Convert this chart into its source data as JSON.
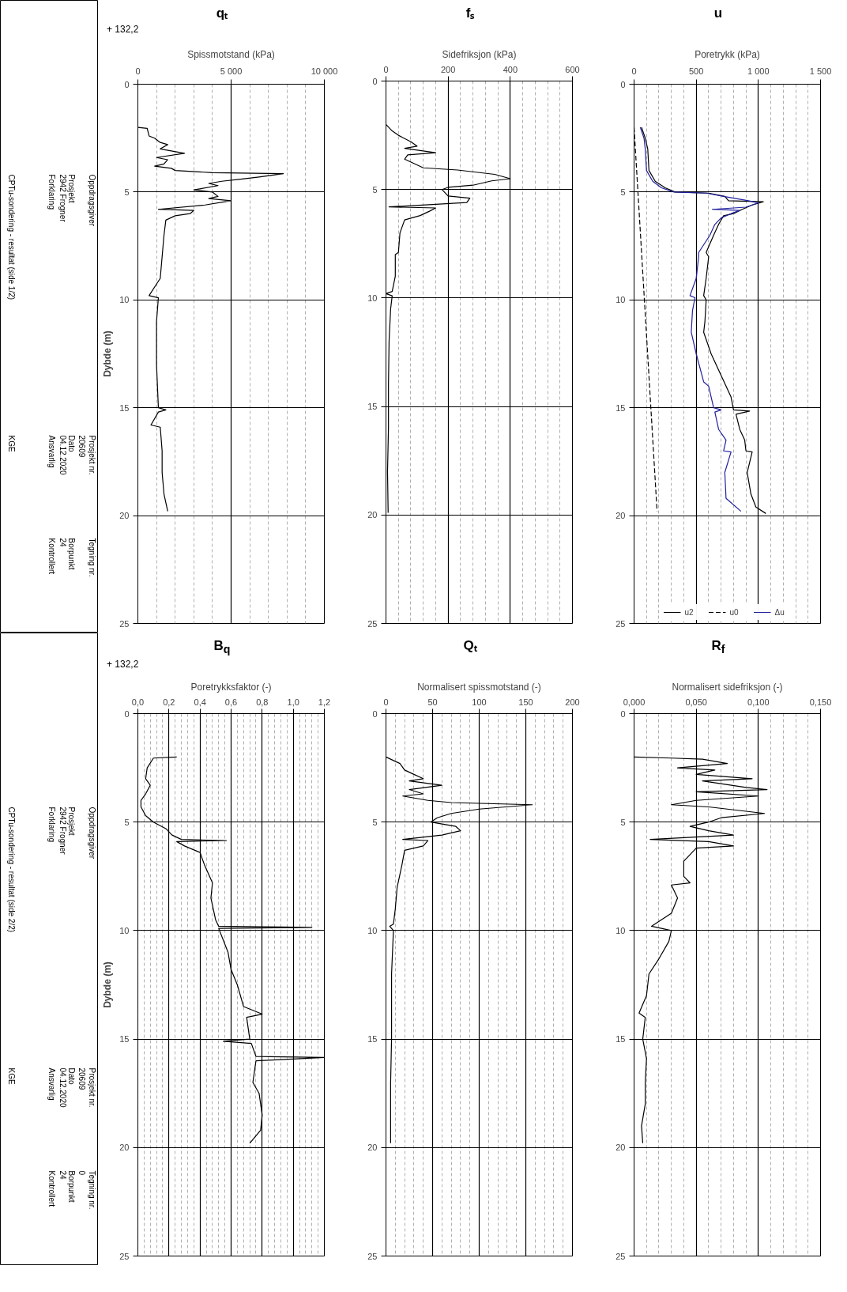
{
  "chart_data": [
    {
      "type": "other",
      "annotations": [
        "Oppdragsgiver",
        "Prosjekt",
        "2942 Frogner",
        "Forklaring",
        "CPTu-sondering - resultat (side 1/2)",
        "Prosjekt nr.",
        "20609",
        "Dato",
        "04.12.2020",
        "Ansvarlig",
        "KGE",
        "Tegning nr.",
        "Borpunkt",
        "24",
        "Kontrollert"
      ]
    },
    {
      "type": "line",
      "title": "qₜ",
      "xlabel": "Spissmotstand (kPa)",
      "ylabel": "Dybde (m)",
      "annotations": [
        "+ 132,2"
      ],
      "xlim": [
        0,
        10000
      ],
      "ylim": [
        25,
        0
      ],
      "xticks": [
        0,
        {
          "value": 1000,
          "label": null
        },
        {
          "value": 2000,
          "label": null
        },
        {
          "value": 3000,
          "label": null
        },
        {
          "value": 4000,
          "label": null
        },
        {
          "value": 5000,
          "label": "5 000"
        },
        {
          "value": 6000,
          "label": null
        },
        {
          "value": 7000,
          "label": null
        },
        {
          "value": 8000,
          "label": null
        },
        {
          "value": 9000,
          "label": null
        },
        {
          "value": 10000,
          "label": "10 000"
        }
      ],
      "yticks": [
        0,
        5,
        10,
        15,
        20,
        25
      ],
      "grid": true,
      "legend": false,
      "marker": "none",
      "series": [
        {
          "color": "#000000",
          "line_style": "solid",
          "x": [
            0,
            500,
            600,
            900,
            1200,
            1600,
            1200,
            2500,
            1000,
            1600,
            1400,
            900,
            1800,
            2000,
            4000,
            7800,
            6500,
            5500,
            4500,
            3800,
            4300,
            3000,
            4000,
            4300,
            3800,
            5000,
            3600,
            1100,
            3000,
            2800,
            2000,
            1500,
            1400,
            1300,
            1200,
            600,
            1100,
            1000,
            1000,
            1100,
            1500,
            1100,
            700,
            1200,
            1300,
            1300,
            1400,
            1600
          ],
          "values": [
            2.0,
            2.05,
            2.4,
            2.5,
            2.7,
            2.8,
            3.0,
            3.2,
            3.4,
            3.5,
            3.7,
            3.8,
            3.9,
            4.0,
            4.1,
            4.15,
            4.3,
            4.4,
            4.5,
            4.6,
            4.7,
            4.9,
            5.0,
            5.2,
            5.3,
            5.4,
            5.6,
            5.8,
            5.85,
            6.0,
            6.1,
            6.3,
            7.0,
            8.0,
            9.0,
            9.8,
            9.9,
            11.0,
            13.0,
            15.0,
            15.1,
            15.2,
            15.8,
            15.9,
            17.0,
            18.0,
            19.0,
            19.8
          ]
        }
      ]
    },
    {
      "type": "line",
      "title": "fₛ",
      "xlabel": "Sidefriksjon (kPa)",
      "xlim": [
        0,
        600
      ],
      "ylim": [
        25,
        0
      ],
      "xticks": [
        0,
        {
          "value": 40,
          "label": null
        },
        {
          "value": 80,
          "label": null
        },
        {
          "value": 120,
          "label": null
        },
        {
          "value": 160,
          "label": null
        },
        200,
        {
          "value": 240,
          "label": null
        },
        {
          "value": 280,
          "label": null
        },
        {
          "value": 320,
          "label": null
        },
        {
          "value": 360,
          "label": null
        },
        400,
        {
          "value": 440,
          "label": null
        },
        {
          "value": 480,
          "label": null
        },
        {
          "value": 520,
          "label": null
        },
        {
          "value": 560,
          "label": null
        },
        600
      ],
      "yticks": [
        0,
        5,
        10,
        15,
        20,
        25
      ],
      "grid": true,
      "legend": false,
      "marker": "none",
      "series": [
        {
          "color": "#000000",
          "line_style": "solid",
          "x": [
            0,
            20,
            40,
            80,
            100,
            60,
            160,
            70,
            60,
            90,
            120,
            230,
            350,
            400,
            340,
            280,
            200,
            180,
            200,
            270,
            260,
            10,
            160,
            140,
            110,
            60,
            45,
            40,
            30,
            30,
            20,
            0,
            20,
            15,
            10,
            8,
            8,
            5,
            7
          ],
          "values": [
            2.0,
            2.3,
            2.5,
            2.8,
            3.0,
            3.1,
            3.3,
            3.4,
            3.6,
            3.8,
            4.0,
            4.1,
            4.3,
            4.5,
            4.6,
            4.8,
            4.9,
            5.0,
            5.3,
            5.4,
            5.6,
            5.8,
            5.85,
            6.0,
            6.2,
            6.4,
            7.0,
            7.9,
            8.0,
            9.0,
            9.7,
            9.8,
            9.9,
            10.5,
            12.0,
            14.0,
            16.0,
            18.0,
            19.9
          ]
        }
      ]
    },
    {
      "type": "line",
      "title": "u",
      "xlabel": "Poretrykk (kPa)",
      "xlim": [
        0,
        1500
      ],
      "ylim": [
        25,
        0
      ],
      "xticks": [
        0,
        {
          "value": 100,
          "label": null
        },
        {
          "value": 200,
          "label": null
        },
        {
          "value": 300,
          "label": null
        },
        {
          "value": 400,
          "label": null
        },
        500,
        {
          "value": 600,
          "label": null
        },
        {
          "value": 700,
          "label": null
        },
        {
          "value": 800,
          "label": null
        },
        {
          "value": 900,
          "label": null
        },
        {
          "value": 1000,
          "label": "1 000"
        },
        {
          "value": 1100,
          "label": null
        },
        {
          "value": 1200,
          "label": null
        },
        {
          "value": 1300,
          "label": null
        },
        {
          "value": 1400,
          "label": null
        },
        {
          "value": 1500,
          "label": "1 500"
        }
      ],
      "yticks": [
        0,
        5,
        10,
        15,
        20,
        25
      ],
      "grid": true,
      "legend": "bottom",
      "marker": "none",
      "series": [
        {
          "name": "u2",
          "color": "#000000",
          "line_style": "solid",
          "x": [
            60,
            90,
            110,
            120,
            170,
            250,
            330,
            600,
            730,
            760,
            1040,
            950,
            870,
            800,
            720,
            680,
            640,
            580,
            600,
            580,
            560,
            580,
            570,
            560,
            620,
            700,
            780,
            800,
            930,
            820,
            850,
            890,
            900,
            950,
            910,
            940,
            980,
            1060
          ],
          "values": [
            2.0,
            2.5,
            3.0,
            4.0,
            4.5,
            4.8,
            5.0,
            5.05,
            5.2,
            5.4,
            5.45,
            5.6,
            5.8,
            6.0,
            6.1,
            6.5,
            7.0,
            7.8,
            8.0,
            9.0,
            9.8,
            10.0,
            11.0,
            11.5,
            12.5,
            13.5,
            14.5,
            15.1,
            15.15,
            15.3,
            16.0,
            16.5,
            17.0,
            17.05,
            18.0,
            19.0,
            19.6,
            19.9
          ]
        },
        {
          "name": "u0",
          "color": "#000000",
          "line_style": "dashed",
          "x": [
            0,
            185
          ],
          "values": [
            2.0,
            19.8
          ]
        },
        {
          "name": "Δu",
          "color": "#1f1fa0",
          "line_style": "solid",
          "x": [
            50,
            80,
            90,
            100,
            150,
            220,
            320,
            580,
            720,
            920,
            1000,
            900,
            630,
            850,
            780,
            700,
            650,
            610,
            520,
            520,
            500,
            450,
            490,
            470,
            460,
            500,
            560,
            600,
            640,
            700,
            650,
            680,
            740,
            720,
            780,
            730,
            740,
            860
          ],
          "values": [
            2.0,
            2.5,
            3.0,
            4.0,
            4.5,
            4.8,
            5.0,
            5.05,
            5.2,
            5.4,
            5.5,
            5.7,
            5.8,
            5.85,
            6.0,
            6.2,
            6.5,
            7.0,
            7.8,
            8.0,
            9.0,
            9.8,
            9.9,
            10.5,
            11.5,
            12.5,
            13.8,
            14.0,
            15.0,
            15.1,
            15.2,
            16.0,
            16.5,
            17.0,
            17.05,
            18.0,
            19.2,
            19.8
          ]
        }
      ]
    },
    {
      "type": "other",
      "annotations": [
        "Oppdragsgiver",
        "Prosjekt",
        "2942 Frogner",
        "Forklaring",
        "CPTu-sondering - resultat (side 2/2)",
        "Prosjekt nr.",
        "20609",
        "Dato",
        "04.12.2020",
        "Ansvarlig",
        "KGE",
        "Tegning nr.",
        "0",
        "Borpunkt",
        "24",
        "Kontrollert"
      ]
    },
    {
      "type": "line",
      "title": "B$_{q}$",
      "xlabel": "Poretrykksfaktor (-)",
      "ylabel": "Dybde (m)",
      "annotations": [
        "+ 132,2"
      ],
      "xlim": [
        0,
        1.2
      ],
      "ylim": [
        25,
        0
      ],
      "xticks": [
        {
          "value": 0,
          "label": "0,0"
        },
        {
          "value": 0.04,
          "label": null
        },
        {
          "value": 0.08,
          "label": null
        },
        {
          "value": 0.12,
          "label": null
        },
        {
          "value": 0.16,
          "label": null
        },
        {
          "value": 0.2,
          "label": "0,2"
        },
        {
          "value": 0.24,
          "label": null
        },
        {
          "value": 0.28,
          "label": null
        },
        {
          "value": 0.32,
          "label": null
        },
        {
          "value": 0.36,
          "label": null
        },
        {
          "value": 0.4,
          "label": "0,4"
        },
        {
          "value": 0.44,
          "label": null
        },
        {
          "value": 0.48,
          "label": null
        },
        {
          "value": 0.52,
          "label": null
        },
        {
          "value": 0.56,
          "label": null
        },
        {
          "value": 0.6,
          "label": "0,6"
        },
        {
          "value": 0.64,
          "label": null
        },
        {
          "value": 0.68,
          "label": null
        },
        {
          "value": 0.72,
          "label": null
        },
        {
          "value": 0.76,
          "label": null
        },
        {
          "value": 0.8,
          "label": "0,8"
        },
        {
          "value": 0.84,
          "label": null
        },
        {
          "value": 0.88,
          "label": null
        },
        {
          "value": 0.92,
          "label": null
        },
        {
          "value": 0.96,
          "label": null
        },
        {
          "value": 1.0,
          "label": "1,0"
        },
        {
          "value": 1.04,
          "label": null
        },
        {
          "value": 1.08,
          "label": null
        },
        {
          "value": 1.12,
          "label": null
        },
        {
          "value": 1.16,
          "label": null
        },
        {
          "value": 1.2,
          "label": "1,2"
        }
      ],
      "yticks": [
        0,
        5,
        10,
        15,
        20,
        25
      ],
      "grid": true,
      "legend": false,
      "marker": "none",
      "series": [
        {
          "color": "#000000",
          "line_style": "solid",
          "x": [
            0.25,
            0.1,
            0.06,
            0.05,
            0.08,
            0.05,
            0.02,
            0.02,
            0.05,
            0.1,
            0.18,
            0.22,
            0.28,
            0.57,
            0.25,
            0.3,
            0.4,
            0.43,
            0.48,
            0.47,
            0.5,
            0.52,
            1.12,
            0.52,
            0.58,
            0.6,
            0.64,
            0.68,
            0.8,
            0.7,
            0.72,
            0.55,
            0.73,
            0.76,
            1.2,
            0.76,
            0.74,
            0.78,
            0.8,
            0.79,
            0.72
          ],
          "values": [
            2.0,
            2.05,
            2.5,
            3.0,
            3.3,
            3.7,
            4.0,
            4.3,
            4.7,
            5.0,
            5.3,
            5.6,
            5.8,
            5.85,
            5.9,
            6.1,
            6.4,
            7.0,
            7.8,
            8.5,
            9.5,
            9.8,
            9.85,
            9.9,
            11.0,
            11.8,
            12.5,
            13.5,
            13.85,
            14.0,
            15.0,
            15.1,
            15.2,
            15.8,
            15.85,
            16.0,
            17.0,
            17.5,
            18.5,
            19.2,
            19.8
          ]
        }
      ]
    },
    {
      "type": "line",
      "title": "Qₜ",
      "xlabel": "Normalisert spissmotstand (-)",
      "xlim": [
        0,
        200
      ],
      "ylim": [
        25,
        0
      ],
      "xticks": [
        0,
        {
          "value": 10,
          "label": null
        },
        {
          "value": 20,
          "label": null
        },
        {
          "value": 30,
          "label": null
        },
        {
          "value": 40,
          "label": null
        },
        50,
        {
          "value": 60,
          "label": null
        },
        {
          "value": 70,
          "label": null
        },
        {
          "value": 80,
          "label": null
        },
        {
          "value": 90,
          "label": null
        },
        100,
        {
          "value": 110,
          "label": null
        },
        {
          "value": 120,
          "label": null
        },
        {
          "value": 130,
          "label": null
        },
        {
          "value": 140,
          "label": null
        },
        150,
        {
          "value": 160,
          "label": null
        },
        {
          "value": 170,
          "label": null
        },
        {
          "value": 180,
          "label": null
        },
        {
          "value": 190,
          "label": null
        },
        200
      ],
      "yticks": [
        0,
        5,
        10,
        15,
        20,
        25
      ],
      "grid": true,
      "legend": false,
      "marker": "none",
      "series": [
        {
          "color": "#000000",
          "line_style": "solid",
          "x": [
            0,
            15,
            20,
            30,
            40,
            25,
            60,
            25,
            40,
            18,
            45,
            70,
            157,
            100,
            70,
            55,
            48,
            75,
            80,
            60,
            18,
            45,
            40,
            20,
            17,
            12,
            10,
            8,
            4,
            8,
            6,
            6,
            5,
            5
          ],
          "values": [
            2.0,
            2.3,
            2.6,
            2.8,
            3.0,
            3.1,
            3.3,
            3.5,
            3.7,
            3.8,
            4.0,
            4.1,
            4.2,
            4.4,
            4.6,
            4.8,
            5.0,
            5.2,
            5.4,
            5.6,
            5.8,
            5.85,
            6.1,
            6.3,
            7.0,
            8.0,
            9.0,
            9.7,
            9.8,
            10.0,
            12.0,
            15.0,
            17.0,
            19.8
          ]
        }
      ]
    },
    {
      "type": "line",
      "title": "R$_{f}$",
      "xlabel": "Normalisert sidefriksjon (-)",
      "xlim": [
        0,
        0.15
      ],
      "ylim": [
        25,
        0
      ],
      "xticks": [
        {
          "value": 0,
          "label": "0,000"
        },
        {
          "value": 0.01,
          "label": null
        },
        {
          "value": 0.02,
          "label": null
        },
        {
          "value": 0.03,
          "label": null
        },
        {
          "value": 0.04,
          "label": null
        },
        {
          "value": 0.05,
          "label": "0,050"
        },
        {
          "value": 0.06,
          "label": null
        },
        {
          "value": 0.07,
          "label": null
        },
        {
          "value": 0.08,
          "label": null
        },
        {
          "value": 0.09,
          "label": null
        },
        {
          "value": 0.1,
          "label": "0,100"
        },
        {
          "value": 0.11,
          "label": null
        },
        {
          "value": 0.12,
          "label": null
        },
        {
          "value": 0.13,
          "label": null
        },
        {
          "value": 0.14,
          "label": null
        },
        {
          "value": 0.15,
          "label": "0,150"
        }
      ],
      "yticks": [
        0,
        5,
        10,
        15,
        20,
        25
      ],
      "grid": true,
      "legend": false,
      "marker": "none",
      "series": [
        {
          "color": "#000000",
          "line_style": "solid",
          "x": [
            0.0,
            0.03,
            0.055,
            0.075,
            0.035,
            0.065,
            0.05,
            0.095,
            0.055,
            0.09,
            0.107,
            0.05,
            0.1,
            0.05,
            0.03,
            0.06,
            0.105,
            0.07,
            0.06,
            0.045,
            0.06,
            0.08,
            0.013,
            0.06,
            0.08,
            0.05,
            0.045,
            0.04,
            0.04,
            0.045,
            0.03,
            0.035,
            0.03,
            0.014,
            0.03,
            0.028,
            0.02,
            0.012,
            0.01,
            0.004,
            0.009,
            0.007,
            0.01,
            0.009,
            0.009,
            0.006,
            0.007
          ],
          "values": [
            2.0,
            2.05,
            2.1,
            2.3,
            2.5,
            2.6,
            2.8,
            3.0,
            3.1,
            3.4,
            3.5,
            3.6,
            3.8,
            4.0,
            4.2,
            4.3,
            4.6,
            4.8,
            5.0,
            5.2,
            5.4,
            5.6,
            5.8,
            5.9,
            6.1,
            6.2,
            6.5,
            6.8,
            7.5,
            7.8,
            7.9,
            8.5,
            9.2,
            9.8,
            10.0,
            10.5,
            11.3,
            12.0,
            13.0,
            13.8,
            14.0,
            15.0,
            15.9,
            17.0,
            18.0,
            19.0,
            19.8
          ]
        }
      ]
    }
  ]
}
